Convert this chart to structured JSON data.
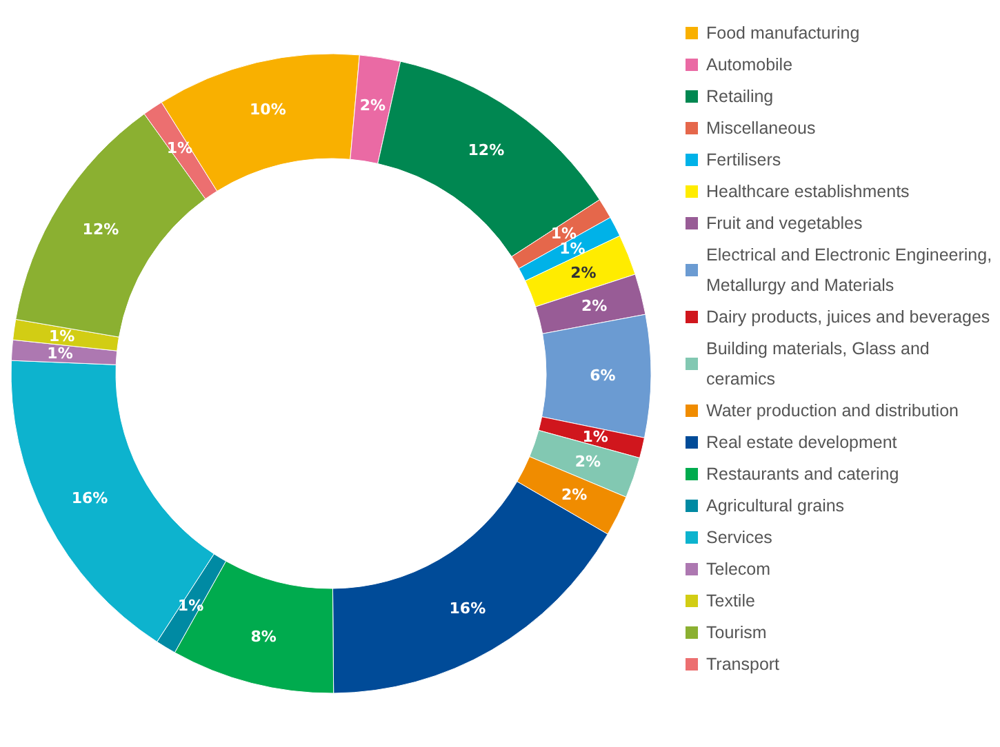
{
  "chart_data": {
    "type": "donut",
    "legend": "right",
    "categories": [
      "Food manufacturing",
      "Automobile",
      "Retailing",
      "Miscellaneous",
      "Fertilisers",
      "Healthcare establishments",
      "Fruit and vegetables",
      "Electrical and Electronic Engineering, Metallurgy and Materials",
      "Dairy products, juices and beverages",
      "Building materials, Glass and ceramics",
      "Water production and distribution",
      "Real estate development",
      "Restaurants and catering",
      "Agricultural grains",
      "Services",
      "Telecom",
      "Textile",
      "Tourism",
      "Transport"
    ],
    "values": [
      10,
      2,
      12,
      1,
      1,
      2,
      2,
      6,
      1,
      2,
      2,
      16,
      8,
      1,
      16,
      1,
      1,
      12,
      1
    ],
    "value_labels": [
      "10%",
      "2%",
      "12%",
      "1%",
      "1%",
      "2%",
      "2%",
      "6%",
      "1%",
      "2%",
      "2%",
      "16%",
      "8%",
      "1%",
      "16%",
      "1%",
      "1%",
      "12%",
      "1%"
    ],
    "colors": [
      "#f9b000",
      "#ea6aa4",
      "#008751",
      "#e5674b",
      "#00b2e8",
      "#ffec00",
      "#985c96",
      "#6b9bd2",
      "#d0161d",
      "#82c8b2",
      "#f08c00",
      "#004b98",
      "#00ab4e",
      "#008aa3",
      "#0db3ce",
      "#ad78b1",
      "#d2cd14",
      "#8bb031",
      "#ec6f70"
    ]
  }
}
